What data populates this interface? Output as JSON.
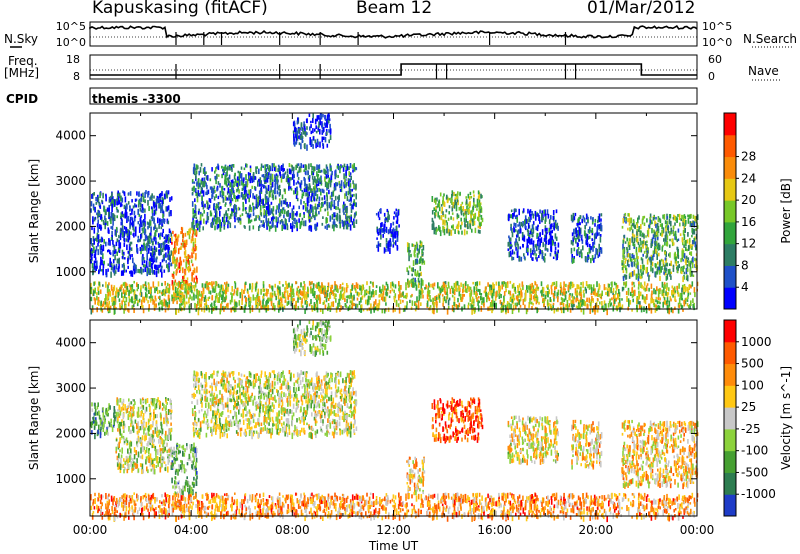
{
  "header": {
    "station": "Kapuskasing (fitACF)",
    "beam": "Beam 12",
    "date": "01/Mar/2012"
  },
  "side_labels": {
    "nsky": "N.Sky",
    "nsearch": "N.Search",
    "freq": "Freq.",
    "freq_unit": "[MHz]",
    "nave": "Nave",
    "cpid": "CPID",
    "cpid_value": "themis -3300"
  },
  "small_axes": {
    "nsky_ticks": [
      "10^5",
      "10^0"
    ],
    "nsearch_ticks": [
      "10^5",
      "10^0"
    ],
    "freq_ticks": [
      "18",
      "8"
    ],
    "nave_ticks": [
      "60",
      "0"
    ]
  },
  "chart_data": [
    {
      "type": "heatmap",
      "title": "",
      "quantity": "Power",
      "ylabel": "Slant Range [km]",
      "xlabel": "Time UT",
      "ylim": [
        180,
        4500
      ],
      "xlim": [
        "00:00",
        "24:00"
      ],
      "x_ticks": [
        "00:00",
        "04:00",
        "08:00",
        "12:00",
        "16:00",
        "20:00",
        "00:00"
      ],
      "y_ticks": [
        "1000",
        "2000",
        "3000",
        "4000"
      ],
      "colorbar": {
        "label": "Power [dB]",
        "ticks": [
          "4",
          "8",
          "12",
          "16",
          "20",
          "24",
          "28"
        ],
        "colors": [
          "#0000ff",
          "#1e50c8",
          "#2d7d64",
          "#32a53c",
          "#78c828",
          "#e6c814",
          "#fa8c0a",
          "#ff5a00",
          "#ff0000"
        ]
      },
      "regions": [
        {
          "t0": 0.0,
          "t1": 3.2,
          "r0": 1000,
          "r1": 2800,
          "level": 0.15
        },
        {
          "t0": 3.2,
          "t1": 4.2,
          "r0": 700,
          "r1": 2000,
          "level": 0.7
        },
        {
          "t0": 4.0,
          "t1": 10.5,
          "r0": 2000,
          "r1": 3400,
          "level": 0.25
        },
        {
          "t0": 8.0,
          "t1": 9.5,
          "r0": 3800,
          "r1": 4500,
          "level": 0.1
        },
        {
          "t0": 11.3,
          "t1": 12.2,
          "r0": 1500,
          "r1": 2400,
          "level": 0.1
        },
        {
          "t0": 12.5,
          "t1": 13.2,
          "r0": 800,
          "r1": 1700,
          "level": 0.4
        },
        {
          "t0": 13.5,
          "t1": 15.5,
          "r0": 1900,
          "r1": 2800,
          "level": 0.45
        },
        {
          "t0": 16.5,
          "t1": 18.5,
          "r0": 1300,
          "r1": 2400,
          "level": 0.15
        },
        {
          "t0": 19.0,
          "t1": 20.2,
          "r0": 1300,
          "r1": 2300,
          "level": 0.2
        },
        {
          "t0": 21.0,
          "t1": 24.0,
          "r0": 900,
          "r1": 2300,
          "level": 0.4
        },
        {
          "t0": 0.0,
          "t1": 24.0,
          "r0": 180,
          "r1": 800,
          "level": 0.55
        }
      ]
    },
    {
      "type": "heatmap",
      "title": "",
      "quantity": "Velocity",
      "ylabel": "Slant Range [km]",
      "xlabel": "Time UT",
      "ylim": [
        180,
        4500
      ],
      "xlim": [
        "00:00",
        "24:00"
      ],
      "x_ticks": [
        "00:00",
        "04:00",
        "08:00",
        "12:00",
        "16:00",
        "20:00",
        "00:00"
      ],
      "y_ticks": [
        "1000",
        "2000",
        "3000",
        "4000"
      ],
      "colorbar": {
        "label": "Velocity [m s^-1]",
        "ticks": [
          "1000",
          "500",
          "100",
          "25",
          "-25",
          "-100",
          "-500",
          "-1000"
        ],
        "colors": [
          "#1e3cc8",
          "#2d7d50",
          "#46a032",
          "#8cd23c",
          "#c8c8c8",
          "#ffc814",
          "#ff8c0a",
          "#ff5a00",
          "#ff0000"
        ]
      },
      "regions": [
        {
          "t0": 0.0,
          "t1": 1.0,
          "r0": 2000,
          "r1": 2700,
          "level": 0.25
        },
        {
          "t0": 1.0,
          "t1": 3.2,
          "r0": 1200,
          "r1": 2800,
          "level": 0.5
        },
        {
          "t0": 3.2,
          "t1": 4.2,
          "r0": 700,
          "r1": 1800,
          "level": 0.3
        },
        {
          "t0": 4.0,
          "t1": 10.5,
          "r0": 2000,
          "r1": 3400,
          "level": 0.5
        },
        {
          "t0": 8.0,
          "t1": 9.5,
          "r0": 3800,
          "r1": 4500,
          "level": 0.4
        },
        {
          "t0": 12.5,
          "t1": 13.2,
          "r0": 700,
          "r1": 1500,
          "level": 0.6
        },
        {
          "t0": 13.5,
          "t1": 15.5,
          "r0": 1900,
          "r1": 2800,
          "level": 0.85
        },
        {
          "t0": 16.5,
          "t1": 18.5,
          "r0": 1400,
          "r1": 2400,
          "level": 0.55
        },
        {
          "t0": 19.0,
          "t1": 20.2,
          "r0": 1300,
          "r1": 2300,
          "level": 0.6
        },
        {
          "t0": 21.0,
          "t1": 24.0,
          "r0": 900,
          "r1": 2300,
          "level": 0.6
        },
        {
          "t0": 0.0,
          "t1": 24.0,
          "r0": 180,
          "r1": 700,
          "level": 0.7
        }
      ]
    }
  ]
}
